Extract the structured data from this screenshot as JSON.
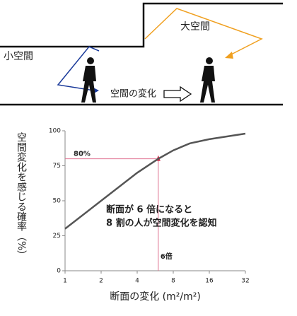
{
  "diagram": {
    "small_space": "小空間",
    "large_space": "大空間",
    "change_label": "空間の変化"
  },
  "chart_data": {
    "type": "line",
    "x_label": "断面の変化 (m²/m²)",
    "y_label": "空間変化を感じる確率（%）",
    "x": [
      1,
      2,
      4,
      6,
      8,
      11,
      16,
      32
    ],
    "series": [
      {
        "color": "#555555",
        "values": [
          30,
          50,
          70,
          80,
          86,
          91,
          94,
          98
        ]
      }
    ],
    "xscale": "log",
    "xlim": [
      1,
      32
    ],
    "xticks": [
      1,
      2,
      4,
      8,
      16,
      32
    ],
    "ylim": [
      0,
      100
    ],
    "yticks": [
      0,
      25,
      50,
      75,
      100
    ],
    "reference": {
      "x": 6,
      "y": 80,
      "x_label": "6倍",
      "y_label": "80%",
      "color": "#e07090"
    },
    "annotation": [
      "断面が 6 倍になると",
      "8 割の人が空間変化を認知"
    ]
  }
}
